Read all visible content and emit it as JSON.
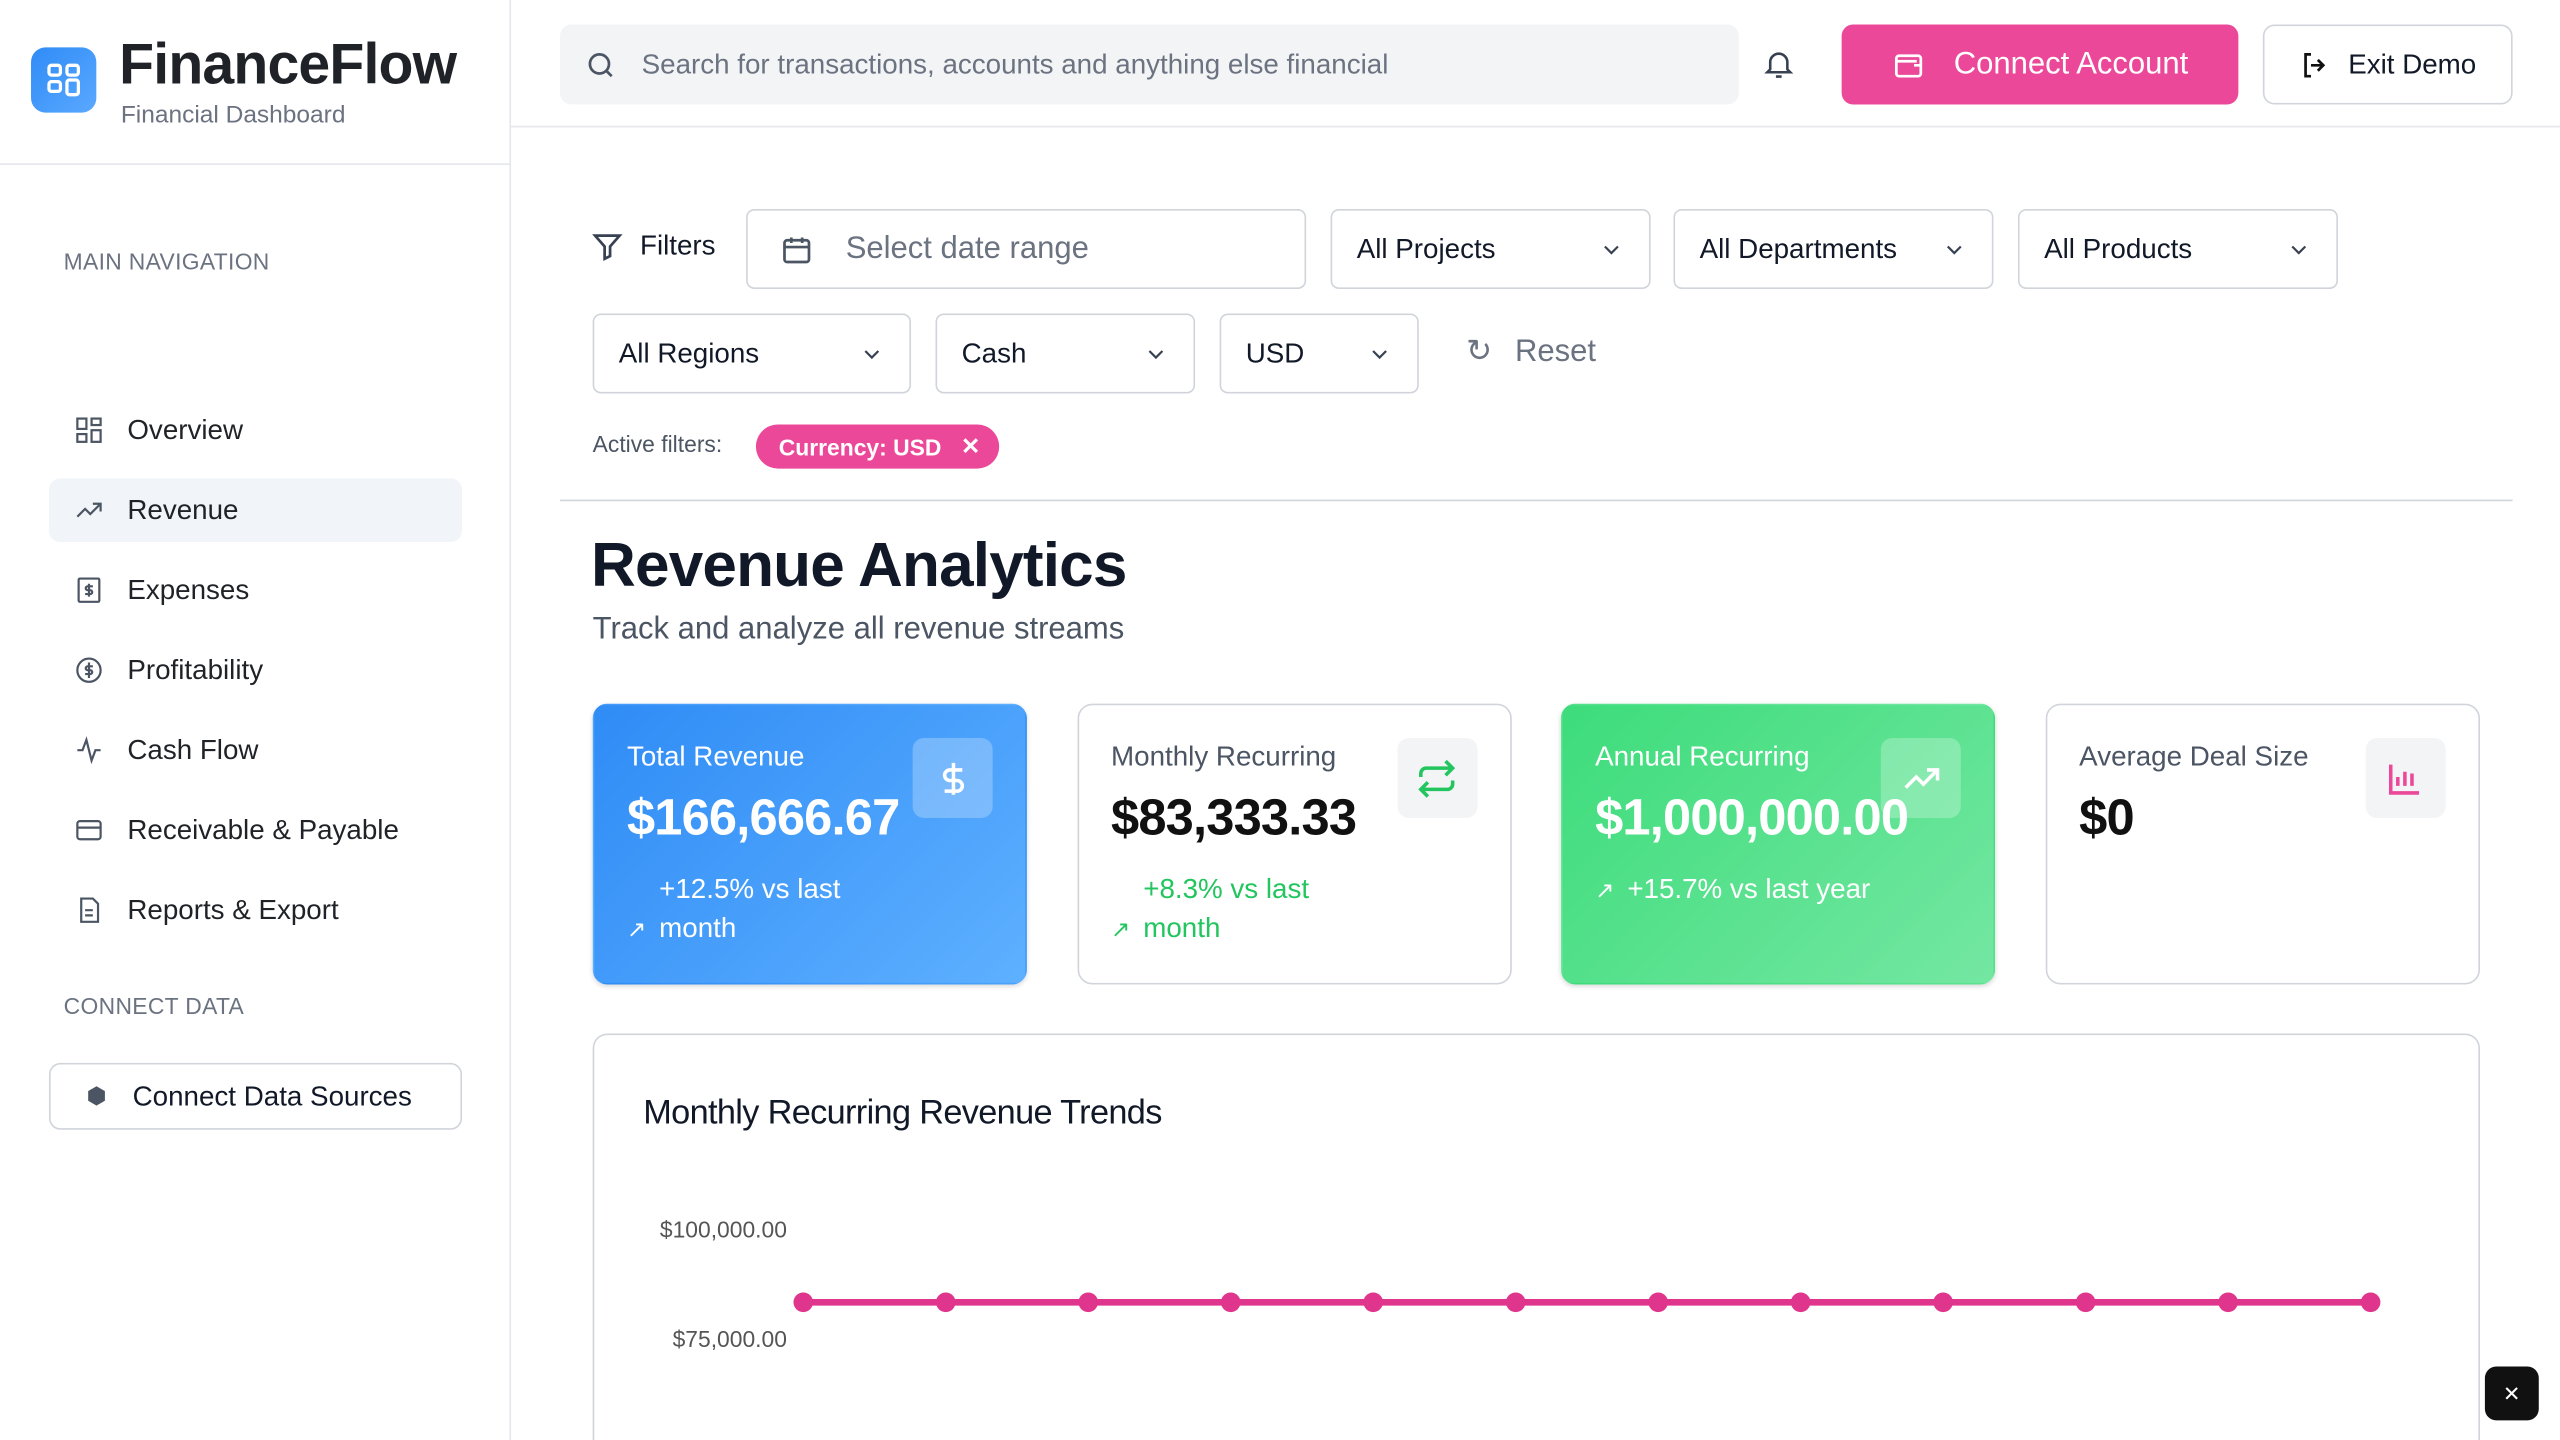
{
  "brand": {
    "name": "FinanceFlow",
    "subtitle": "Financial Dashboard"
  },
  "sidebar": {
    "main_heading": "MAIN NAVIGATION",
    "items": [
      {
        "label": "Overview",
        "icon": "grid-icon"
      },
      {
        "label": "Revenue",
        "icon": "trending-up-icon",
        "active": true
      },
      {
        "label": "Expenses",
        "icon": "receipt-icon"
      },
      {
        "label": "Profitability",
        "icon": "dollar-circle-icon"
      },
      {
        "label": "Cash Flow",
        "icon": "activity-icon"
      },
      {
        "label": "Receivable & Payable",
        "icon": "credit-card-icon"
      },
      {
        "label": "Reports & Export",
        "icon": "file-text-icon"
      }
    ],
    "connect_heading": "CONNECT DATA",
    "connect_button": "Connect Data Sources"
  },
  "header": {
    "search_placeholder": "Search for transactions, accounts and anything else financial",
    "connect_label": "Connect Account",
    "exit_label": "Exit Demo"
  },
  "filters": {
    "label": "Filters",
    "date_placeholder": "Select date range",
    "projects": "All Projects",
    "departments": "All Departments",
    "products": "All Products",
    "regions": "All Regions",
    "type": "Cash",
    "currency": "USD",
    "reset": "Reset",
    "active_label": "Active filters:",
    "active_chip": "Currency: USD"
  },
  "page": {
    "title": "Revenue Analytics",
    "subtitle": "Track and analyze all revenue streams"
  },
  "cards": [
    {
      "title": "Total Revenue",
      "value": "$166,666.67",
      "change": "+12.5% vs last month",
      "icon": "dollar-icon"
    },
    {
      "title": "Monthly Recurring",
      "value": "$83,333.33",
      "change": "+8.3% vs last month",
      "icon": "repeat-icon"
    },
    {
      "title": "Annual Recurring",
      "value": "$1,000,000.00",
      "change": "+15.7% vs last year",
      "icon": "trending-up-icon"
    },
    {
      "title": "Average Deal Size",
      "value": "$0",
      "icon": "bar-chart-icon"
    }
  ],
  "colors": {
    "accent": "#ec4899",
    "blue": "#3b8ff6",
    "green": "#4ade80"
  },
  "chart_data": {
    "type": "line",
    "title": "Monthly Recurring Revenue Trends",
    "y_ticks": [
      "$100,000.00",
      "$75,000.00"
    ],
    "y_tick_values": [
      100000,
      75000
    ],
    "series": [
      {
        "values": [
          83333.33,
          83333.33,
          83333.33,
          83333.33,
          83333.33,
          83333.33,
          83333.33,
          83333.33,
          83333.33,
          83333.33,
          83333.33,
          83333.33
        ],
        "color": "#e0358c"
      }
    ]
  }
}
